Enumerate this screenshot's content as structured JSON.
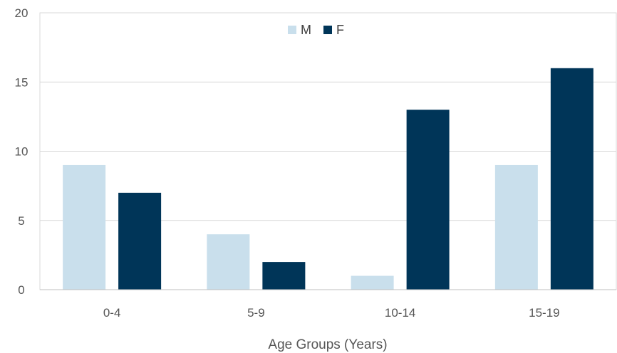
{
  "chart_data": {
    "type": "bar",
    "title": "",
    "xlabel": "Age Groups (Years)",
    "ylabel": "",
    "categories": [
      "0-4",
      "5-9",
      "10-14",
      "15-19"
    ],
    "series": [
      {
        "name": "M",
        "values": [
          9,
          4,
          1,
          9
        ],
        "color": "#c9dfec"
      },
      {
        "name": "F",
        "values": [
          7,
          2,
          13,
          16
        ],
        "color": "#003558"
      }
    ],
    "ylim": [
      0,
      20
    ],
    "yticks": [
      0,
      5,
      10,
      15,
      20
    ],
    "grid": true,
    "legend_position": "top-center"
  }
}
